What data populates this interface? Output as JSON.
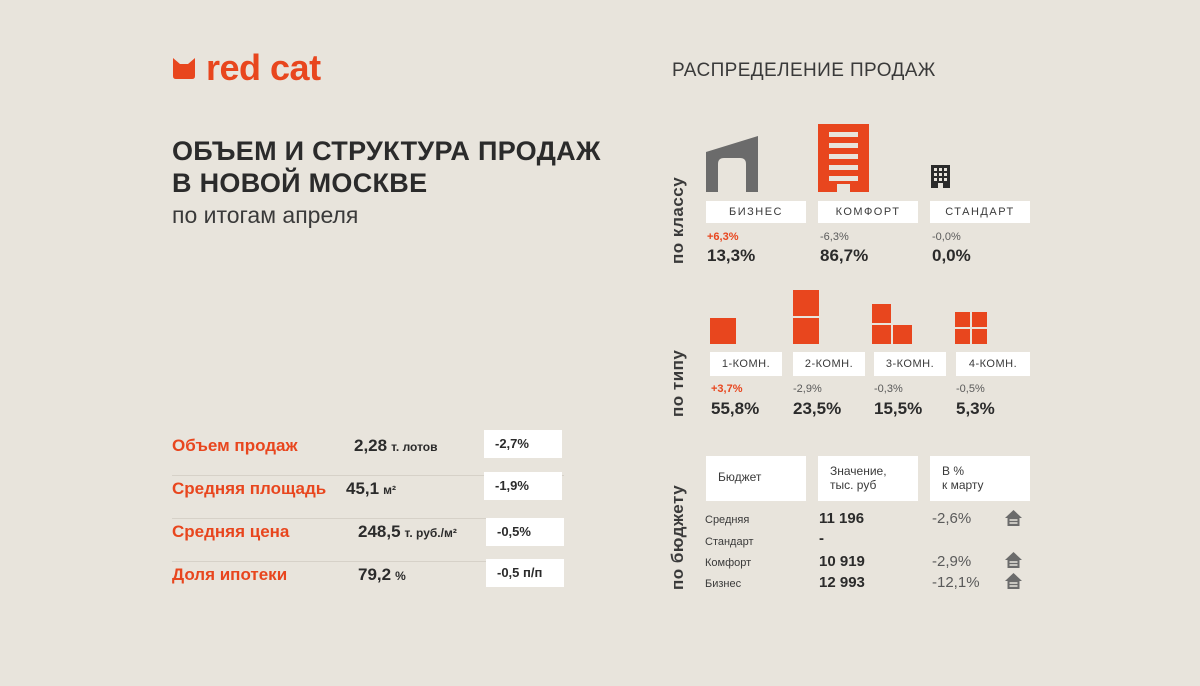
{
  "brand": {
    "name": "red cat",
    "color": "#e8461e"
  },
  "title": {
    "line1": "ОБЪЕМ И СТРУКТУРА ПРОДАЖ",
    "line2": "В НОВОЙ МОСКВЕ",
    "subtitle": "по итогам апреля"
  },
  "metrics": [
    {
      "label": "Объем продаж",
      "value": "2,28",
      "unit": "т. лотов",
      "change": "-2,7%"
    },
    {
      "label": "Средняя площадь",
      "value": "45,1",
      "unit": "м²",
      "change": "-1,9%"
    },
    {
      "label": "Средняя цена",
      "value": "248,5",
      "unit": "т. руб./м²",
      "change": "-0,5%"
    },
    {
      "label": "Доля ипотеки",
      "value": "79,2",
      "unit": "%",
      "change": "-0,5 п/п"
    }
  ],
  "distribution": {
    "title": "РАСПРЕДЕЛЕНИЕ ПРОДАЖ",
    "by_class": {
      "label": "по классу",
      "items": [
        {
          "name": "БИЗНЕС",
          "change": "+6,3%",
          "value": "13,3%",
          "icon": "business-building-icon"
        },
        {
          "name": "КОМФОРТ",
          "change": "-6,3%",
          "value": "86,7%",
          "icon": "comfort-building-icon"
        },
        {
          "name": "СТАНДАРТ",
          "change": "-0,0%",
          "value": "0,0%",
          "icon": "standard-building-icon"
        }
      ]
    },
    "by_type": {
      "label": "по типу",
      "items": [
        {
          "name": "1-КОМН.",
          "change": "+3,7%",
          "value": "55,8%",
          "icon": "one-room-icon"
        },
        {
          "name": "2-КОМН.",
          "change": "-2,9%",
          "value": "23,5%",
          "icon": "two-room-icon"
        },
        {
          "name": "3-КОМН.",
          "change": "-0,3%",
          "value": "15,5%",
          "icon": "three-room-icon"
        },
        {
          "name": "4-КОМН.",
          "change": "-0,5%",
          "value": "5,3%",
          "icon": "four-room-icon"
        }
      ]
    },
    "by_budget": {
      "label": "по бюджету",
      "headers": [
        "Бюджет",
        "Значение,\nтыс. руб",
        "В %\nк марту"
      ],
      "header_lines": [
        [
          "Бюджет"
        ],
        [
          "Значение,",
          "тыс. руб"
        ],
        [
          "В %",
          "к марту"
        ]
      ],
      "rows": [
        {
          "name": "Средняя",
          "value": "11 196",
          "change": "-2,6%",
          "icon": "house-icon"
        },
        {
          "name": "Стандарт",
          "value": "-",
          "change": "",
          "icon": ""
        },
        {
          "name": "Комфорт",
          "value": "10 919",
          "change": "-2,9%",
          "icon": "house-icon"
        },
        {
          "name": "Бизнес",
          "value": "12 993",
          "change": "-12,1%",
          "icon": "house-icon"
        }
      ]
    }
  },
  "colors": {
    "accent": "#e8461e",
    "background": "#e8e4dc",
    "icon_gray": "#6b6b6b",
    "text": "#2b2b2b"
  }
}
